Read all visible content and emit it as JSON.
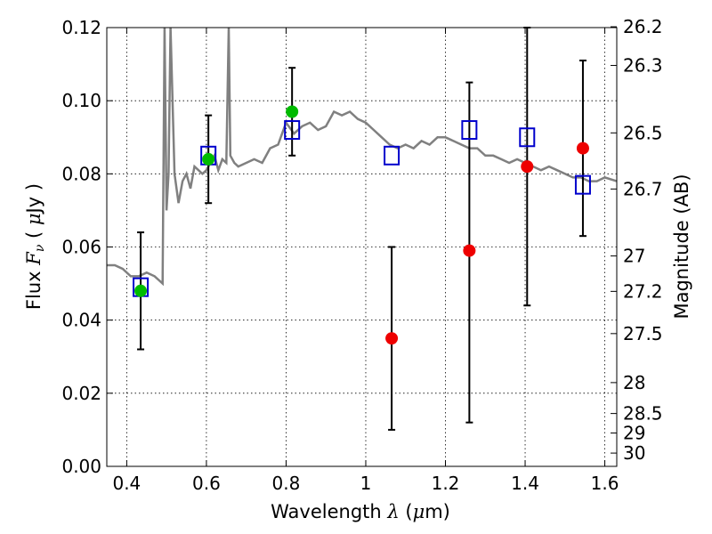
{
  "chart_data": {
    "type": "scatter",
    "title": "",
    "xlabel_parts": [
      "Wavelength  ",
      "λ",
      " (",
      "μ",
      "m)"
    ],
    "ylabel_parts": [
      "Flux  ",
      "F",
      "ν",
      "  ( ",
      "μ",
      "Jy )"
    ],
    "y2label": "Magnitude (AB)",
    "xlim": [
      0.35,
      1.63
    ],
    "ylim": [
      0.0,
      0.12
    ],
    "grid": true,
    "x_ticks": [
      0.4,
      0.6,
      0.8,
      1.0,
      1.2,
      1.4,
      1.6
    ],
    "x_tick_labels": [
      "0.4",
      "0.6",
      "0.8",
      "1",
      "1.2",
      "1.4",
      "1.6"
    ],
    "y_ticks": [
      0.0,
      0.02,
      0.04,
      0.06,
      0.08,
      0.1,
      0.12
    ],
    "y_tick_labels": [
      "0.00",
      "0.02",
      "0.04",
      "0.06",
      "0.08",
      "0.10",
      "0.12"
    ],
    "mag_ticks": [
      "26.2",
      "26.3",
      "26.5",
      "26.7",
      "27",
      "27.2",
      "27.5",
      "28",
      "28.5",
      "29",
      "30"
    ],
    "spectrum": {
      "color": "#808080",
      "x": [
        0.35,
        0.37,
        0.39,
        0.41,
        0.43,
        0.45,
        0.47,
        0.48,
        0.49,
        0.495,
        0.5,
        0.505,
        0.51,
        0.52,
        0.53,
        0.54,
        0.55,
        0.56,
        0.57,
        0.58,
        0.59,
        0.6,
        0.61,
        0.62,
        0.63,
        0.64,
        0.65,
        0.656,
        0.66,
        0.67,
        0.68,
        0.7,
        0.72,
        0.74,
        0.76,
        0.78,
        0.8,
        0.82,
        0.84,
        0.86,
        0.88,
        0.9,
        0.92,
        0.94,
        0.96,
        0.98,
        1.0,
        1.02,
        1.04,
        1.06,
        1.08,
        1.1,
        1.12,
        1.14,
        1.16,
        1.18,
        1.2,
        1.22,
        1.24,
        1.26,
        1.28,
        1.3,
        1.32,
        1.34,
        1.36,
        1.38,
        1.4,
        1.42,
        1.44,
        1.46,
        1.48,
        1.5,
        1.52,
        1.54,
        1.56,
        1.58,
        1.6,
        1.63
      ],
      "y": [
        0.055,
        0.055,
        0.054,
        0.052,
        0.052,
        0.053,
        0.052,
        0.051,
        0.05,
        0.12,
        0.07,
        0.08,
        0.12,
        0.08,
        0.072,
        0.078,
        0.08,
        0.076,
        0.082,
        0.081,
        0.08,
        0.081,
        0.083,
        0.085,
        0.081,
        0.084,
        0.083,
        0.12,
        0.085,
        0.083,
        0.082,
        0.083,
        0.084,
        0.083,
        0.087,
        0.088,
        0.094,
        0.091,
        0.093,
        0.094,
        0.092,
        0.093,
        0.097,
        0.096,
        0.097,
        0.095,
        0.094,
        0.092,
        0.09,
        0.088,
        0.087,
        0.088,
        0.087,
        0.089,
        0.088,
        0.09,
        0.09,
        0.089,
        0.088,
        0.087,
        0.087,
        0.085,
        0.085,
        0.084,
        0.083,
        0.084,
        0.083,
        0.082,
        0.081,
        0.082,
        0.081,
        0.08,
        0.079,
        0.079,
        0.078,
        0.078,
        0.079,
        0.078
      ]
    },
    "model_points": {
      "color": "#0000cc",
      "x": [
        0.435,
        0.605,
        0.815,
        1.065,
        1.26,
        1.405,
        1.545
      ],
      "y": [
        0.049,
        0.085,
        0.092,
        0.085,
        0.092,
        0.09,
        0.077
      ]
    },
    "detections": {
      "color": "#00bb00",
      "x": [
        0.435,
        0.605,
        0.815
      ],
      "y": [
        0.048,
        0.084,
        0.097
      ],
      "yerr_low": [
        0.032,
        0.072,
        0.085
      ],
      "yerr_high": [
        0.064,
        0.096,
        0.109
      ]
    },
    "upper_limits": {
      "color": "#ee0000",
      "x": [
        1.065,
        1.26,
        1.405,
        1.545
      ],
      "y": [
        0.035,
        0.059,
        0.082,
        0.087
      ],
      "yerr_low": [
        0.01,
        0.012,
        0.044,
        0.063
      ],
      "yerr_high": [
        0.06,
        0.105,
        0.12,
        0.111
      ]
    }
  }
}
